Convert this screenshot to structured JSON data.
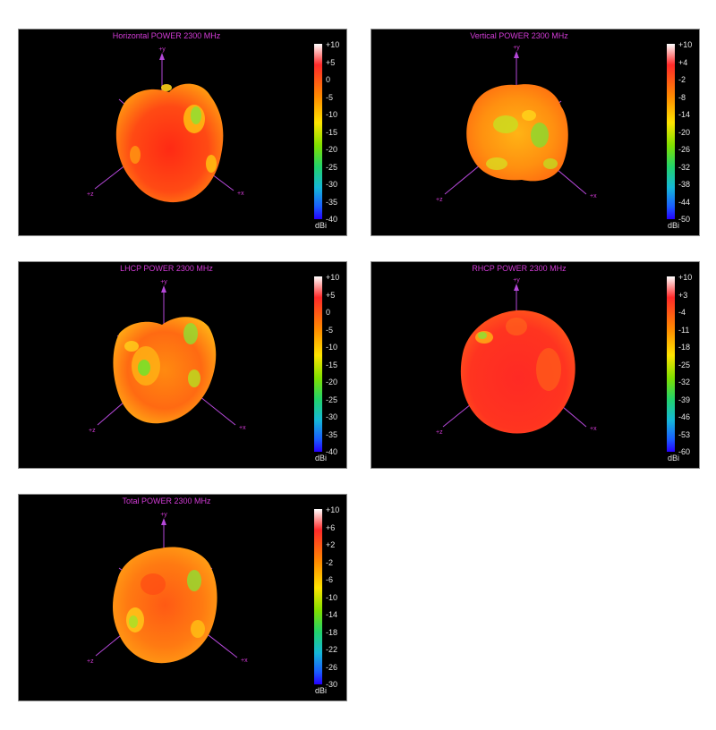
{
  "panels": [
    {
      "title": "Horizontal POWER 2300  MHz",
      "ticks": [
        "+10",
        "+5",
        "0",
        "-5",
        "-10",
        "-15",
        "-20",
        "-25",
        "-30",
        "-35",
        "-40"
      ],
      "unit": "dBi",
      "axes": {
        "y": "+y",
        "x": "+x",
        "z": "+z"
      }
    },
    {
      "title": "Vertical POWER 2300  MHz",
      "ticks": [
        "+10",
        "+4",
        "-2",
        "-8",
        "-14",
        "-20",
        "-26",
        "-32",
        "-38",
        "-44",
        "-50"
      ],
      "unit": "dBi",
      "axes": {
        "y": "+y",
        "x": "+x",
        "z": "+z"
      }
    },
    {
      "title": "LHCP POWER 2300  MHz",
      "ticks": [
        "+10",
        "+5",
        "0",
        "-5",
        "-10",
        "-15",
        "-20",
        "-25",
        "-30",
        "-35",
        "-40"
      ],
      "unit": "dBi",
      "axes": {
        "y": "+y",
        "x": "+x",
        "z": "+z"
      }
    },
    {
      "title": "RHCP POWER 2300  MHz",
      "ticks": [
        "+10",
        "+3",
        "-4",
        "-11",
        "-18",
        "-25",
        "-32",
        "-39",
        "-46",
        "-53",
        "-60"
      ],
      "unit": "dBi",
      "axes": {
        "y": "+y",
        "x": "+x",
        "z": "+z"
      }
    },
    {
      "title": "Total POWER 2300  MHz",
      "ticks": [
        "+10",
        "+6",
        "+2",
        "-2",
        "-6",
        "-10",
        "-14",
        "-18",
        "-22",
        "-26",
        "-30"
      ],
      "unit": "dBi",
      "axes": {
        "y": "+y",
        "x": "+x",
        "z": "+z"
      }
    }
  ],
  "colors": {
    "axis": "#b548d9",
    "title": "#d23bd6",
    "pattern_red": "#ff3a1a",
    "pattern_orange": "#ff8a0a",
    "pattern_yellow": "#ffd21a",
    "pattern_green": "#78e02a"
  }
}
